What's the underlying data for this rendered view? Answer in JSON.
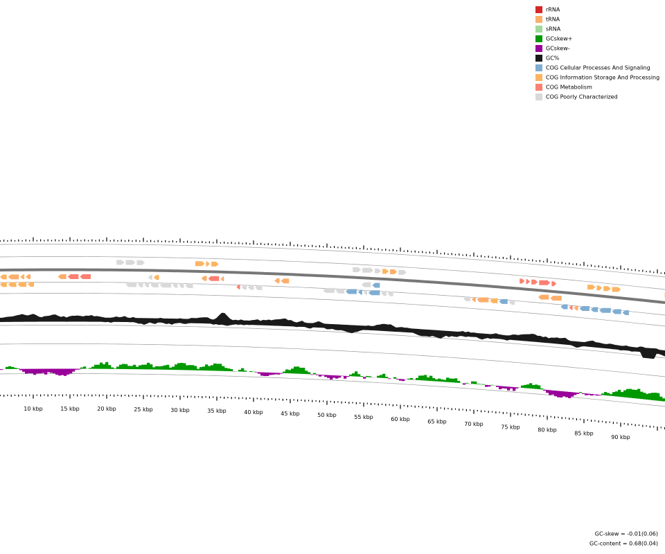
{
  "legend": [
    {
      "label": "rRNA",
      "color": "#d62728"
    },
    {
      "label": "tRNA",
      "color": "#fdae6b"
    },
    {
      "label": "sRNA",
      "color": "#a1d99b"
    },
    {
      "label": "GCskew+",
      "color": "#009900"
    },
    {
      "label": "GCskew-",
      "color": "#990099"
    },
    {
      "label": "GC%",
      "color": "#1a1a1a"
    },
    {
      "label": "COG Cellular Processes And Signaling",
      "color": "#7eadd1"
    },
    {
      "label": "COG Information Storage And Processing",
      "color": "#fdb462"
    },
    {
      "label": "COG Metabolism",
      "color": "#fb8072"
    },
    {
      "label": "COG Poorly Characterized",
      "color": "#d9d9d9"
    }
  ],
  "ticks": [
    "10 kbp",
    "15 kbp",
    "20 kbp",
    "25 kbp",
    "30 kbp",
    "35 kbp",
    "40 kbp",
    "45 kbp",
    "50 kbp",
    "55 kbp",
    "60 kbp",
    "65 kbp",
    "70 kbp",
    "75 kbp",
    "80 kbp",
    "85 kbp",
    "90 kbp"
  ],
  "stats": [
    "GC-skew = -0.01(0.06)",
    "GC-content = 0.68(0.04)"
  ]
}
